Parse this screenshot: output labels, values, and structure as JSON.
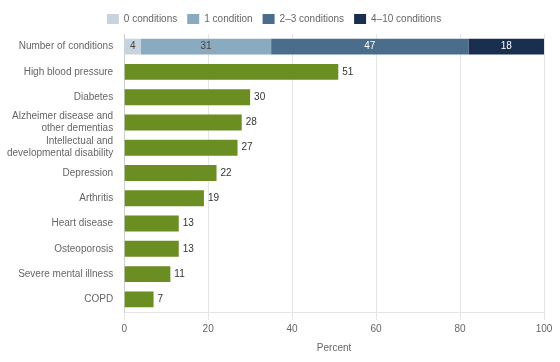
{
  "chart_data": {
    "type": "bar",
    "orientation": "horizontal",
    "stacked": true,
    "categories": [
      "Number of conditions",
      "High blood pressure",
      "Diabetes",
      "Alzheimer disease and\nother dementias",
      "Intellectual and\ndevelopmental disability",
      "Depression",
      "Arthritis",
      "Heart disease",
      "Osteoporosis",
      "Severe mental illness",
      "COPD"
    ],
    "series": [
      {
        "name": "0 conditions",
        "color": "#c8d3e0",
        "values": [
          4,
          null,
          null,
          null,
          null,
          null,
          null,
          null,
          null,
          null,
          null
        ]
      },
      {
        "name": "1 condition",
        "color": "#8aaabf",
        "values": [
          31,
          null,
          null,
          null,
          null,
          null,
          null,
          null,
          null,
          null,
          null
        ]
      },
      {
        "name": "2–3 conditions",
        "color": "#4a6d8c",
        "values": [
          47,
          null,
          null,
          null,
          null,
          null,
          null,
          null,
          null,
          null,
          null
        ]
      },
      {
        "name": "4–10 conditions",
        "color": "#1a2f50",
        "values": [
          18,
          null,
          null,
          null,
          null,
          null,
          null,
          null,
          null,
          null,
          null
        ]
      },
      {
        "color": "#6b8e23",
        "values": [
          null,
          51,
          30,
          28,
          27,
          22,
          19,
          13,
          13,
          11,
          7
        ]
      }
    ],
    "xlabel": "Percent",
    "xlim": [
      0,
      100
    ],
    "xticks": [
      0,
      20,
      40,
      60,
      80,
      100
    ],
    "grid": true,
    "legend": "top",
    "data_labels": true
  }
}
